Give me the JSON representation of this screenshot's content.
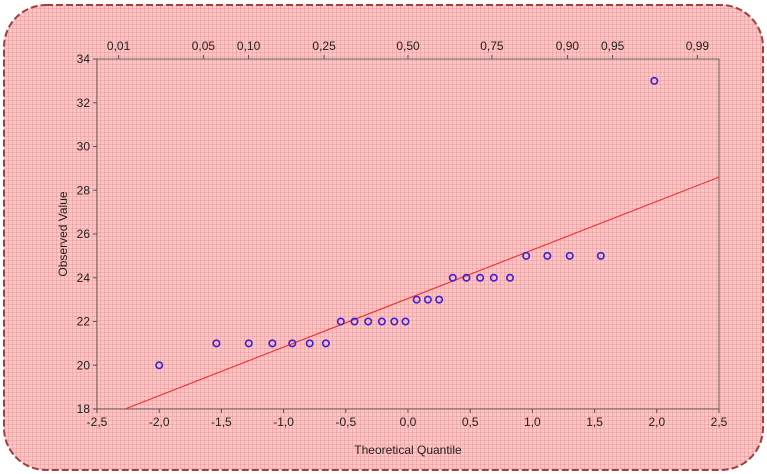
{
  "chart_data": {
    "type": "scatter",
    "title": "",
    "xlabel": "Theoretical Quantile",
    "ylabel": "Observed Value",
    "xlim": [
      -2.5,
      2.5
    ],
    "ylim": [
      18,
      34
    ],
    "x_ticks": [
      "-2,5",
      "-2,0",
      "-1,5",
      "-1,0",
      "-0,5",
      "0,0",
      "0,5",
      "1,0",
      "1,5",
      "2,0",
      "2,5"
    ],
    "x_tick_values": [
      -2.5,
      -2.0,
      -1.5,
      -1.0,
      -0.5,
      0.0,
      0.5,
      1.0,
      1.5,
      2.0,
      2.5
    ],
    "y_ticks": [
      "18",
      "20",
      "22",
      "24",
      "26",
      "28",
      "30",
      "32",
      "34"
    ],
    "y_tick_values": [
      18,
      20,
      22,
      24,
      26,
      28,
      30,
      32,
      34
    ],
    "top_axis_ticks": [
      "0,01",
      "0,05",
      "0,10",
      "0,25",
      "0,50",
      "0,75",
      "0,90",
      "0,95",
      "0,99"
    ],
    "top_axis_values": [
      0.01,
      0.05,
      0.1,
      0.25,
      0.5,
      0.75,
      0.9,
      0.95,
      0.99
    ],
    "grid": true,
    "points": [
      {
        "x": -2.0,
        "y": 20
      },
      {
        "x": -1.54,
        "y": 21
      },
      {
        "x": -1.28,
        "y": 21
      },
      {
        "x": -1.09,
        "y": 21
      },
      {
        "x": -0.93,
        "y": 21
      },
      {
        "x": -0.79,
        "y": 21
      },
      {
        "x": -0.66,
        "y": 21
      },
      {
        "x": -0.54,
        "y": 22
      },
      {
        "x": -0.43,
        "y": 22
      },
      {
        "x": -0.32,
        "y": 22
      },
      {
        "x": -0.21,
        "y": 22
      },
      {
        "x": -0.11,
        "y": 22
      },
      {
        "x": -0.02,
        "y": 22
      },
      {
        "x": 0.07,
        "y": 23
      },
      {
        "x": 0.16,
        "y": 23
      },
      {
        "x": 0.25,
        "y": 23
      },
      {
        "x": 0.36,
        "y": 24
      },
      {
        "x": 0.47,
        "y": 24
      },
      {
        "x": 0.58,
        "y": 24
      },
      {
        "x": 0.69,
        "y": 24
      },
      {
        "x": 0.82,
        "y": 24
      },
      {
        "x": 0.95,
        "y": 25
      },
      {
        "x": 1.12,
        "y": 25
      },
      {
        "x": 1.3,
        "y": 25
      },
      {
        "x": 1.55,
        "y": 25
      },
      {
        "x": 1.98,
        "y": 33
      }
    ],
    "reference_line": {
      "x": [
        -2.5,
        2.5
      ],
      "y": [
        17.5,
        28.6
      ]
    },
    "colors": {
      "background": "#f7b8b8",
      "grid": "#e06c6c",
      "border": "#a0413e",
      "points": "#3b22d6",
      "line": "#e83a3a"
    }
  }
}
